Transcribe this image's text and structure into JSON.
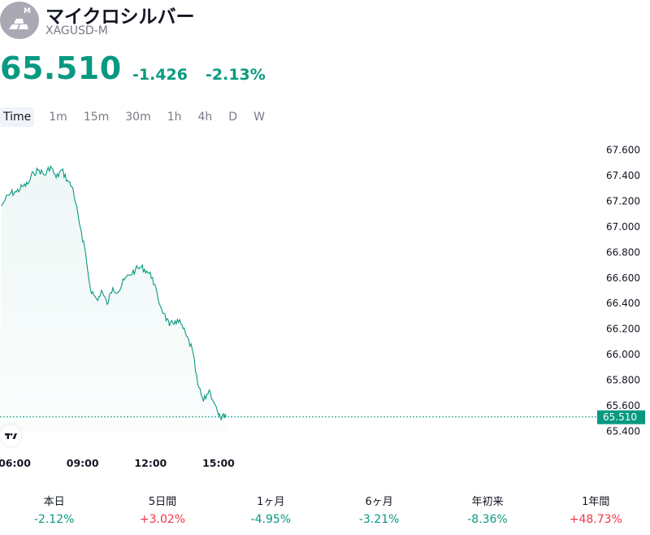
{
  "header": {
    "title": "マイクロシルバー",
    "symbol": "XAGUSD-M",
    "logo_letter": "M",
    "logo_icon": "silver-bars-icon"
  },
  "quote": {
    "price": "65.510",
    "change": "-1.426",
    "change_pct": "-2.13%",
    "color": "#089981"
  },
  "intervals": [
    {
      "label": "Time",
      "active": true
    },
    {
      "label": "1m"
    },
    {
      "label": "15m"
    },
    {
      "label": "30m"
    },
    {
      "label": "1h"
    },
    {
      "label": "4h"
    },
    {
      "label": "D"
    },
    {
      "label": "W"
    }
  ],
  "chart_data": {
    "type": "area",
    "x": [
      "05:25",
      "05:35",
      "05:50",
      "06:05",
      "06:20",
      "06:35",
      "06:50",
      "07:05",
      "07:20",
      "07:35",
      "07:50",
      "08:05",
      "08:20",
      "08:35",
      "08:50",
      "09:00",
      "09:05",
      "09:10",
      "09:20",
      "09:30",
      "09:40",
      "09:50",
      "10:05",
      "10:20",
      "10:35",
      "10:50",
      "11:05",
      "11:20",
      "11:35",
      "11:50",
      "12:05",
      "12:20",
      "12:35",
      "12:50",
      "13:05",
      "13:20",
      "13:35",
      "13:50",
      "14:05",
      "14:20",
      "14:35",
      "14:50",
      "15:00",
      "15:05",
      "15:10",
      "15:15",
      "15:20"
    ],
    "values": [
      67.16,
      67.21,
      67.26,
      67.27,
      67.31,
      67.33,
      67.42,
      67.44,
      67.4,
      67.47,
      67.38,
      67.44,
      67.36,
      67.29,
      67.05,
      66.88,
      66.84,
      66.74,
      66.52,
      66.46,
      66.42,
      66.5,
      66.39,
      66.52,
      66.49,
      66.58,
      66.62,
      66.66,
      66.68,
      66.65,
      66.6,
      66.43,
      66.32,
      66.22,
      66.26,
      66.24,
      66.14,
      66.04,
      65.76,
      65.63,
      65.72,
      65.61,
      65.52,
      65.5,
      65.52,
      65.5,
      65.51
    ],
    "yticks": [
      "67.600",
      "67.400",
      "67.200",
      "67.000",
      "66.800",
      "66.600",
      "66.400",
      "66.200",
      "66.000",
      "65.800",
      "65.600",
      "65.400"
    ],
    "ylim": [
      65.4,
      67.6
    ],
    "xticks": [
      "06:00",
      "09:00",
      "12:00",
      "15:00"
    ],
    "current_value": "65.510",
    "line_color": "#089981",
    "grid": false
  },
  "performance": [
    {
      "label": "本日",
      "value": "-2.12%",
      "color": "#089981"
    },
    {
      "label": "5日間",
      "value": "+3.02%",
      "color": "#f23645"
    },
    {
      "label": "1ヶ月",
      "value": "-4.95%",
      "color": "#089981"
    },
    {
      "label": "6ヶ月",
      "value": "-3.21%",
      "color": "#089981"
    },
    {
      "label": "年初来",
      "value": "-8.36%",
      "color": "#089981"
    },
    {
      "label": "1年間",
      "value": "+48.73%",
      "color": "#f23645"
    }
  ]
}
